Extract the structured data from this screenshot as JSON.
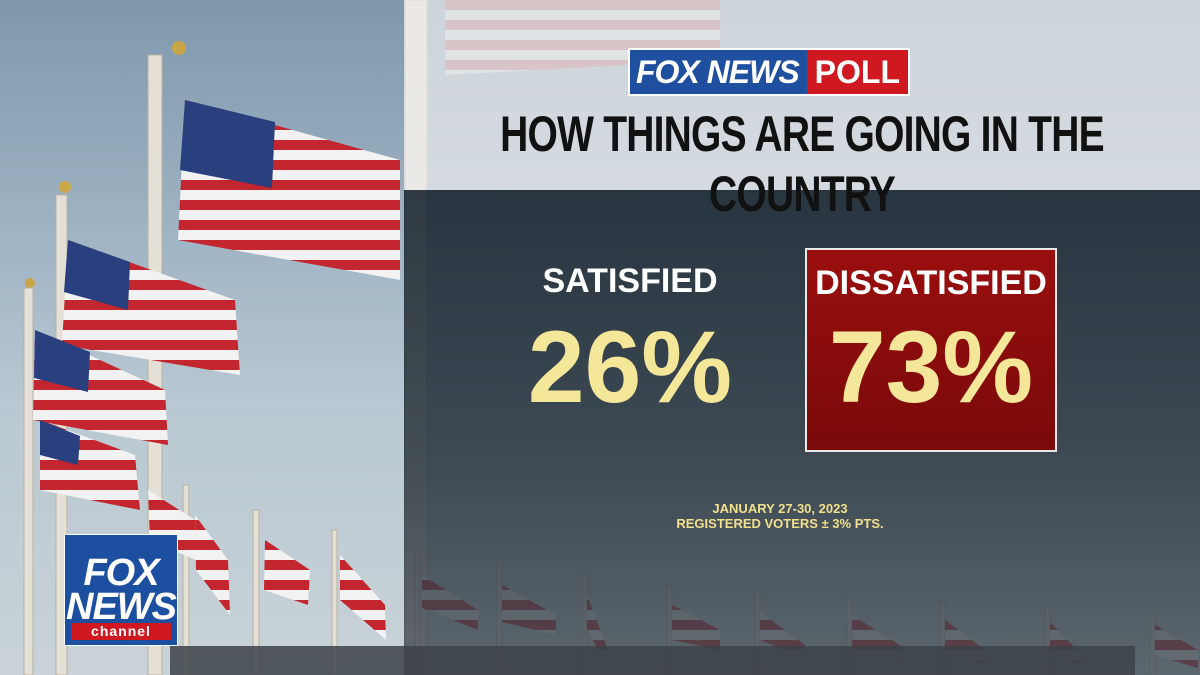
{
  "poll_logo": {
    "brand": "FOX NEWS",
    "badge": "POLL"
  },
  "headline": "HOW THINGS ARE GOING IN THE COUNTRY",
  "results": {
    "satisfied": {
      "label": "SATISFIED",
      "value": "26%"
    },
    "dissatisfied": {
      "label": "DISSATISFIED",
      "value": "73%"
    }
  },
  "footnote": {
    "dates": "JANUARY 27-30, 2023",
    "sample": "REGISTERED VOTERS ± 3% PTS."
  },
  "channel_logo": {
    "line1": "FOX",
    "line2": "NEWS",
    "line3": "channel"
  },
  "colors": {
    "fox_blue": "#1f4f9f",
    "poll_red": "#d01820",
    "dissatisfied_box": "#8a0c0c",
    "value_yellow": "#f4e79a"
  }
}
